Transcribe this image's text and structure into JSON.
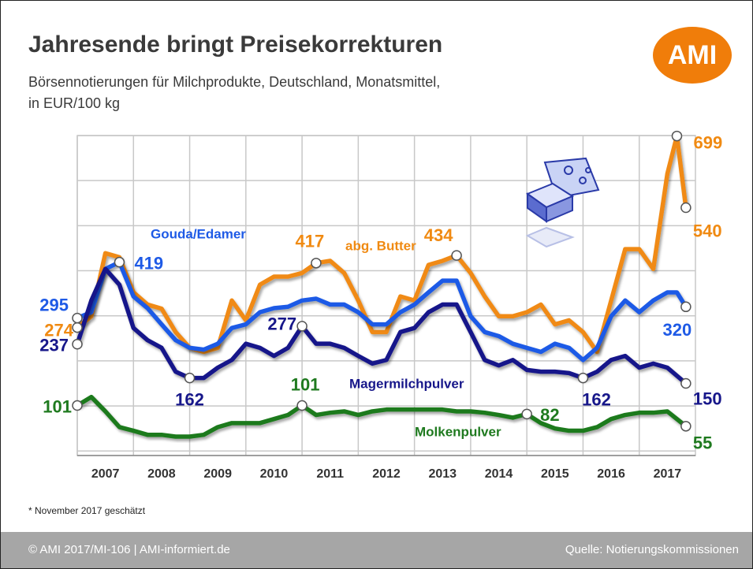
{
  "chart_data": {
    "type": "line",
    "title": "Jahresende bringt Preisekorrekturen",
    "subtitle": [
      "Börsennotierungen für Milchprodukte, Deutschland, Monatsmittel,",
      "in EUR/100 kg"
    ],
    "logo": "AMI",
    "footnote": "* November 2017 geschätzt",
    "footer_left": "© AMI 2017/MI-106 | AMI-informiert.de",
    "footer_right": "Quelle: Notierungskommissionen",
    "year_labels": [
      "2007",
      "2008",
      "2009",
      "2010",
      "2011",
      "2012",
      "2013",
      "2014",
      "2015",
      "2016",
      "2017"
    ],
    "xlim": [
      2007,
      2018
    ],
    "ylim": [
      -10,
      700
    ],
    "ygrid": [
      0,
      100,
      200,
      300,
      400,
      500,
      600,
      700
    ],
    "grid": true,
    "x": [
      2007.0,
      2007.25,
      2007.5,
      2007.75,
      2008.0,
      2008.25,
      2008.5,
      2008.75,
      2009.0,
      2009.25,
      2009.5,
      2009.75,
      2010.0,
      2010.25,
      2010.5,
      2010.75,
      2011.0,
      2011.25,
      2011.5,
      2011.75,
      2012.0,
      2012.25,
      2012.5,
      2012.75,
      2013.0,
      2013.25,
      2013.5,
      2013.75,
      2014.0,
      2014.25,
      2014.5,
      2014.75,
      2015.0,
      2015.25,
      2015.5,
      2015.75,
      2016.0,
      2016.25,
      2016.5,
      2016.75,
      2017.0,
      2017.25,
      2017.5,
      2017.67,
      2017.83
    ],
    "series": [
      {
        "name": "abg. Butter",
        "color": "#f08a12",
        "labeled_points": [
          0,
          17,
          27,
          43,
          44
        ],
        "values": [
          274,
          299,
          439,
          430,
          352,
          325,
          316,
          264,
          229,
          220,
          229,
          334,
          290,
          369,
          387,
          387,
          395,
          417,
          422,
          395,
          334,
          264,
          264,
          343,
          334,
          413,
          422,
          434,
          395,
          343,
          299,
          299,
          308,
          325,
          281,
          290,
          264,
          220,
          334,
          448,
          448,
          404,
          615,
          699,
          540
        ]
      },
      {
        "name": "Gouda/Edamer",
        "color": "#1e5ae6",
        "labeled_points": [
          0,
          3,
          44
        ],
        "values": [
          295,
          308,
          404,
          419,
          343,
          317,
          281,
          246,
          229,
          225,
          238,
          273,
          281,
          308,
          317,
          320,
          334,
          338,
          325,
          325,
          308,
          281,
          281,
          308,
          325,
          352,
          378,
          378,
          299,
          264,
          255,
          238,
          229,
          220,
          238,
          229,
          202,
          229,
          299,
          334,
          308,
          334,
          352,
          352,
          320
        ]
      },
      {
        "name": "Magermilchpulver",
        "color": "#17178a",
        "labeled_points": [
          0,
          8,
          16,
          36,
          44
        ],
        "values": [
          237,
          334,
          404,
          369,
          273,
          246,
          229,
          176,
          162,
          162,
          185,
          202,
          238,
          229,
          211,
          229,
          277,
          238,
          238,
          229,
          211,
          194,
          202,
          264,
          273,
          308,
          325,
          325,
          264,
          202,
          190,
          202,
          180,
          176,
          176,
          173,
          162,
          176,
          202,
          211,
          185,
          194,
          185,
          167,
          150
        ]
      },
      {
        "name": "Molkenpulver",
        "color": "#1f7a1f",
        "labeled_points": [
          0,
          16,
          32,
          44
        ],
        "values": [
          101,
          120,
          88,
          53,
          45,
          36,
          36,
          32,
          32,
          36,
          53,
          62,
          62,
          62,
          71,
          80,
          101,
          80,
          85,
          88,
          80,
          88,
          92,
          92,
          92,
          92,
          92,
          88,
          88,
          85,
          80,
          74,
          82,
          62,
          50,
          45,
          45,
          53,
          71,
          80,
          85,
          85,
          88,
          71,
          55
        ]
      }
    ]
  }
}
